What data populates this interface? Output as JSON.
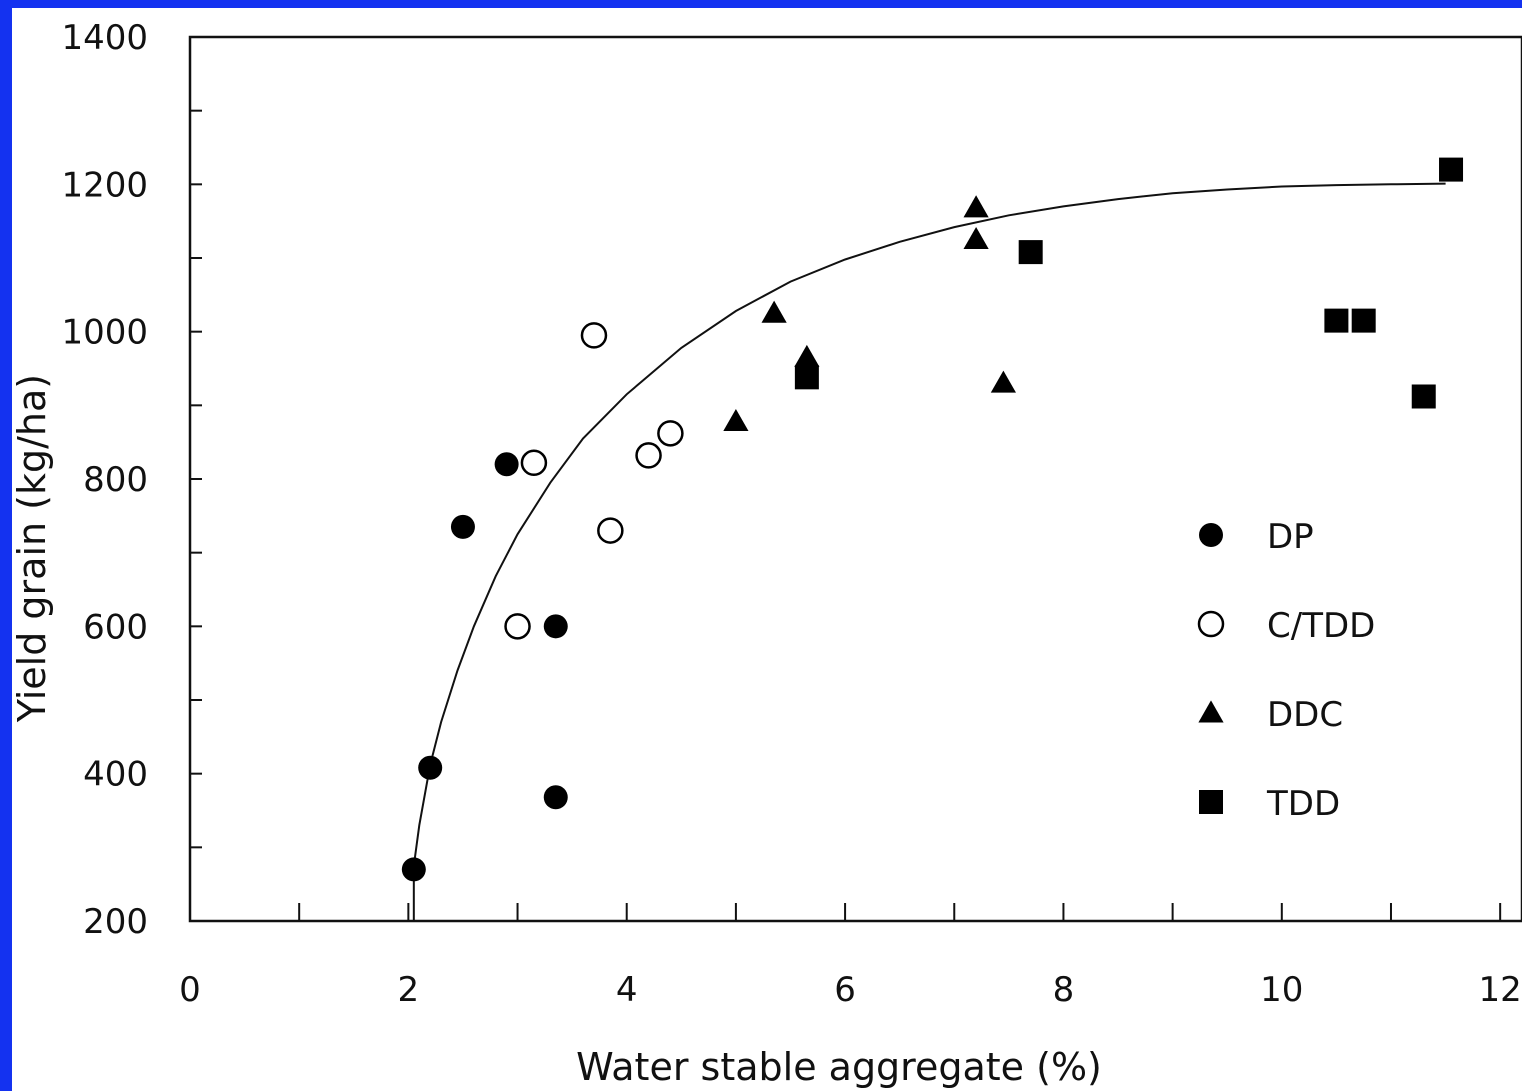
{
  "chart_data": {
    "type": "scatter",
    "title": "",
    "xlabel": "Water stable aggregate (%)",
    "ylabel": "Yield grain (kg/ha)",
    "xlim": [
      0,
      12.2
    ],
    "ylim": [
      200,
      1400
    ],
    "x_ticks": [
      0,
      2,
      4,
      6,
      8,
      10,
      12
    ],
    "y_ticks": [
      200,
      400,
      600,
      800,
      1000,
      1200,
      1400
    ],
    "x_tick_labels": [
      "0",
      "2",
      "4",
      "6",
      "8",
      "10",
      "12"
    ],
    "y_tick_labels": [
      "200",
      "400",
      "600",
      "800",
      "1000",
      "1200",
      "1400"
    ],
    "legend_position": "right-center",
    "series": [
      {
        "name": "DP",
        "marker": "filled-circle",
        "points": [
          {
            "x": 2.05,
            "y": 270
          },
          {
            "x": 2.2,
            "y": 408
          },
          {
            "x": 2.5,
            "y": 735
          },
          {
            "x": 2.9,
            "y": 820
          },
          {
            "x": 3.35,
            "y": 600
          },
          {
            "x": 3.35,
            "y": 368
          }
        ]
      },
      {
        "name": "C/TDD",
        "marker": "open-circle",
        "points": [
          {
            "x": 3.0,
            "y": 600
          },
          {
            "x": 3.15,
            "y": 822
          },
          {
            "x": 3.7,
            "y": 995
          },
          {
            "x": 3.85,
            "y": 730
          },
          {
            "x": 4.2,
            "y": 832
          },
          {
            "x": 4.4,
            "y": 862
          }
        ]
      },
      {
        "name": "DDC",
        "marker": "filled-triangle",
        "points": [
          {
            "x": 5.0,
            "y": 878
          },
          {
            "x": 5.35,
            "y": 1025
          },
          {
            "x": 5.65,
            "y": 965
          },
          {
            "x": 7.2,
            "y": 1168
          },
          {
            "x": 7.2,
            "y": 1125
          },
          {
            "x": 7.45,
            "y": 930
          }
        ]
      },
      {
        "name": "TDD",
        "marker": "filled-square",
        "points": [
          {
            "x": 5.65,
            "y": 938
          },
          {
            "x": 7.7,
            "y": 1108
          },
          {
            "x": 10.5,
            "y": 1015
          },
          {
            "x": 10.75,
            "y": 1015
          },
          {
            "x": 11.3,
            "y": 912
          },
          {
            "x": 11.55,
            "y": 1220
          }
        ]
      }
    ],
    "fit_curve": {
      "points": [
        [
          2.05,
          275
        ],
        [
          2.1,
          330
        ],
        [
          2.2,
          412
        ],
        [
          2.3,
          470
        ],
        [
          2.45,
          540
        ],
        [
          2.6,
          600
        ],
        [
          2.8,
          668
        ],
        [
          3.0,
          725
        ],
        [
          3.3,
          795
        ],
        [
          3.6,
          855
        ],
        [
          4.0,
          915
        ],
        [
          4.5,
          978
        ],
        [
          5.0,
          1028
        ],
        [
          5.5,
          1068
        ],
        [
          6.0,
          1098
        ],
        [
          6.5,
          1122
        ],
        [
          7.0,
          1142
        ],
        [
          7.5,
          1158
        ],
        [
          8.0,
          1170
        ],
        [
          8.5,
          1180
        ],
        [
          9.0,
          1188
        ],
        [
          9.5,
          1193
        ],
        [
          10.0,
          1197
        ],
        [
          10.5,
          1199
        ],
        [
          11.0,
          1200
        ],
        [
          11.5,
          1201
        ]
      ],
      "drop_line_to_axis": true
    }
  }
}
